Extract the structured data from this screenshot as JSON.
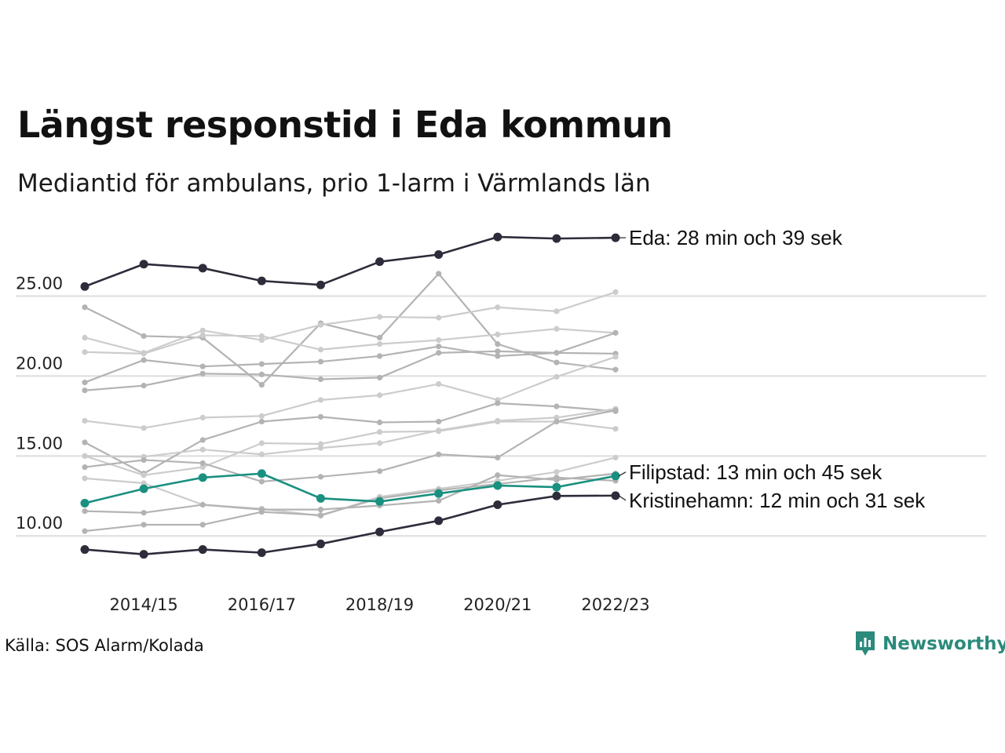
{
  "header": {
    "title": "Längst responstid i Eda kommun",
    "subtitle": "Mediantid för ambulans, prio 1-larm i Värmlands län"
  },
  "footer": {
    "source": "Källa: SOS Alarm/Kolada",
    "brand": "Newsworthy",
    "brand_icon": "bar-chart-speech-bubble-icon",
    "brand_color": "#2b8a7b"
  },
  "chart_data": {
    "type": "line",
    "x": [
      "2013/14",
      "2014/15",
      "2015/16",
      "2016/17",
      "2017/18",
      "2018/19",
      "2019/20",
      "2020/21",
      "2021/22",
      "2022/23"
    ],
    "x_ticks": [
      "2014/15",
      "2016/17",
      "2018/19",
      "2020/21",
      "2022/23"
    ],
    "y_ticks": [
      10,
      15,
      20,
      25
    ],
    "y_tick_labels": [
      "10.00",
      "15.00",
      "20.00",
      "25.00"
    ],
    "ylim": [
      8.0,
      28.9
    ],
    "grid": "horizontal",
    "colors": {
      "highlight_dark": "#2d2c3a",
      "highlight_teal": "#1a9080",
      "background_series": "#b3b3b3",
      "background_series_light": "#cccccc",
      "gridline": "#dddddd"
    },
    "series": [
      {
        "name": "Eda",
        "label": "Eda: 28 min och 39 sek",
        "highlight": "dark",
        "values": [
          25.6,
          27.0,
          26.75,
          25.95,
          25.7,
          27.15,
          27.6,
          28.7,
          28.6,
          28.65
        ]
      },
      {
        "name": "Filipstad",
        "label": "Filipstad: 13 min och 45 sek",
        "highlight": "teal",
        "values": [
          12.05,
          12.95,
          13.65,
          13.9,
          12.35,
          12.15,
          12.65,
          13.15,
          13.05,
          13.75
        ]
      },
      {
        "name": "Kristinehamn",
        "label": "Kristinehamn: 12 min och 31 sek",
        "highlight": "dark",
        "values": [
          9.15,
          8.85,
          9.15,
          8.95,
          9.5,
          10.25,
          10.95,
          11.95,
          12.5,
          12.52
        ]
      },
      {
        "highlight": "none",
        "shade": "dark",
        "values": [
          24.3,
          22.5,
          22.4,
          19.45,
          23.3,
          22.4,
          26.4,
          22.0,
          20.85,
          20.4
        ]
      },
      {
        "highlight": "none",
        "shade": "light",
        "values": [
          22.4,
          21.45,
          22.85,
          22.25,
          23.2,
          23.7,
          23.65,
          24.3,
          24.05,
          25.25
        ]
      },
      {
        "highlight": "none",
        "shade": "light",
        "values": [
          21.5,
          21.4,
          22.55,
          22.5,
          21.65,
          22.0,
          22.25,
          22.6,
          22.95,
          22.7
        ]
      },
      {
        "highlight": "none",
        "shade": "dark",
        "values": [
          19.6,
          21.0,
          20.6,
          20.75,
          20.9,
          21.25,
          21.85,
          21.25,
          21.45,
          22.7
        ]
      },
      {
        "highlight": "none",
        "shade": "dark",
        "values": [
          19.1,
          19.4,
          20.15,
          20.1,
          19.8,
          19.9,
          21.45,
          21.55,
          21.45,
          21.4
        ]
      },
      {
        "highlight": "none",
        "shade": "light",
        "values": [
          17.2,
          16.75,
          17.4,
          17.5,
          18.5,
          18.8,
          19.5,
          18.5,
          19.95,
          21.2
        ]
      },
      {
        "highlight": "none",
        "shade": "dark",
        "values": [
          15.85,
          13.9,
          16.0,
          17.15,
          17.45,
          17.1,
          17.15,
          18.3,
          18.1,
          17.8
        ]
      },
      {
        "highlight": "none",
        "shade": "light",
        "values": [
          15.0,
          14.95,
          15.4,
          15.1,
          15.5,
          15.8,
          16.6,
          17.2,
          17.4,
          17.95
        ]
      },
      {
        "highlight": "none",
        "shade": "light",
        "values": [
          15.0,
          13.8,
          14.3,
          15.8,
          15.75,
          16.5,
          16.55,
          17.15,
          17.15,
          16.7
        ]
      },
      {
        "highlight": "none",
        "shade": "dark",
        "values": [
          14.3,
          14.75,
          14.55,
          13.4,
          13.7,
          14.05,
          15.1,
          14.9,
          17.15,
          17.85
        ]
      },
      {
        "highlight": "none",
        "shade": "light",
        "values": [
          13.6,
          13.3,
          11.95,
          11.7,
          11.25,
          12.45,
          12.95,
          13.45,
          14.0,
          14.9
        ]
      },
      {
        "highlight": "none",
        "shade": "dark",
        "values": [
          11.55,
          11.45,
          11.95,
          11.65,
          11.65,
          11.9,
          12.2,
          13.8,
          13.5,
          13.9
        ]
      },
      {
        "highlight": "none",
        "shade": "dark",
        "values": [
          10.3,
          10.7,
          10.7,
          11.5,
          11.3,
          12.35,
          12.85,
          13.25,
          13.65,
          13.45
        ]
      }
    ]
  }
}
